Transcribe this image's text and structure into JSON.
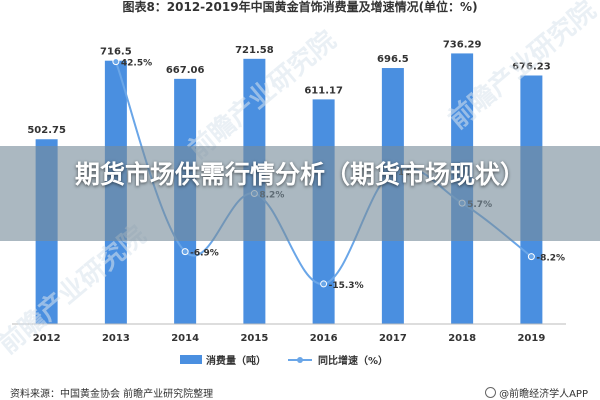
{
  "chart_data": {
    "type": "bar",
    "title": "图表8：2012-2019年中国黄金首饰消费量及增速情况(单位：%)",
    "categories": [
      "2012",
      "2013",
      "2014",
      "2015",
      "2016",
      "2017",
      "2018",
      "2019"
    ],
    "series": [
      {
        "name": "消费量（吨）",
        "type": "bar",
        "color": "#4a8fe0",
        "values": [
          502.75,
          716.5,
          667.06,
          721.58,
          611.17,
          696.5,
          736.29,
          676.23
        ],
        "labels": [
          "502.75",
          "716.5",
          "667.06",
          "721.58",
          "611.17",
          "696.5",
          "736.29",
          "676.23"
        ]
      },
      {
        "name": "同比增速（%）",
        "type": "line",
        "color": "#6aa6e8",
        "values": [
          null,
          42.5,
          -6.9,
          8.2,
          -15.3,
          14.0,
          5.7,
          -8.2
        ],
        "labels": [
          "",
          "42.5%",
          "-6.9%",
          "8.2%",
          "-15.3%",
          "14",
          "5.7%",
          "-8.2%"
        ]
      }
    ],
    "bar_ylim": [
      0,
      800
    ],
    "line_ylim": [
      -20,
      45
    ],
    "legend_position": "bottom-center",
    "grid": false
  },
  "banner": {
    "title": "期货市场供需行情分析（期货市场现状）"
  },
  "footer": {
    "source": "资料来源：中国黄金协会 前瞻产业研究院整理",
    "brand": "@前瞻经济学人APP"
  },
  "watermark": "前瞻产业研究院",
  "colors": {
    "bar": "#4a8fe0",
    "line": "#6aa6e8",
    "banner": "#7a8c99"
  }
}
